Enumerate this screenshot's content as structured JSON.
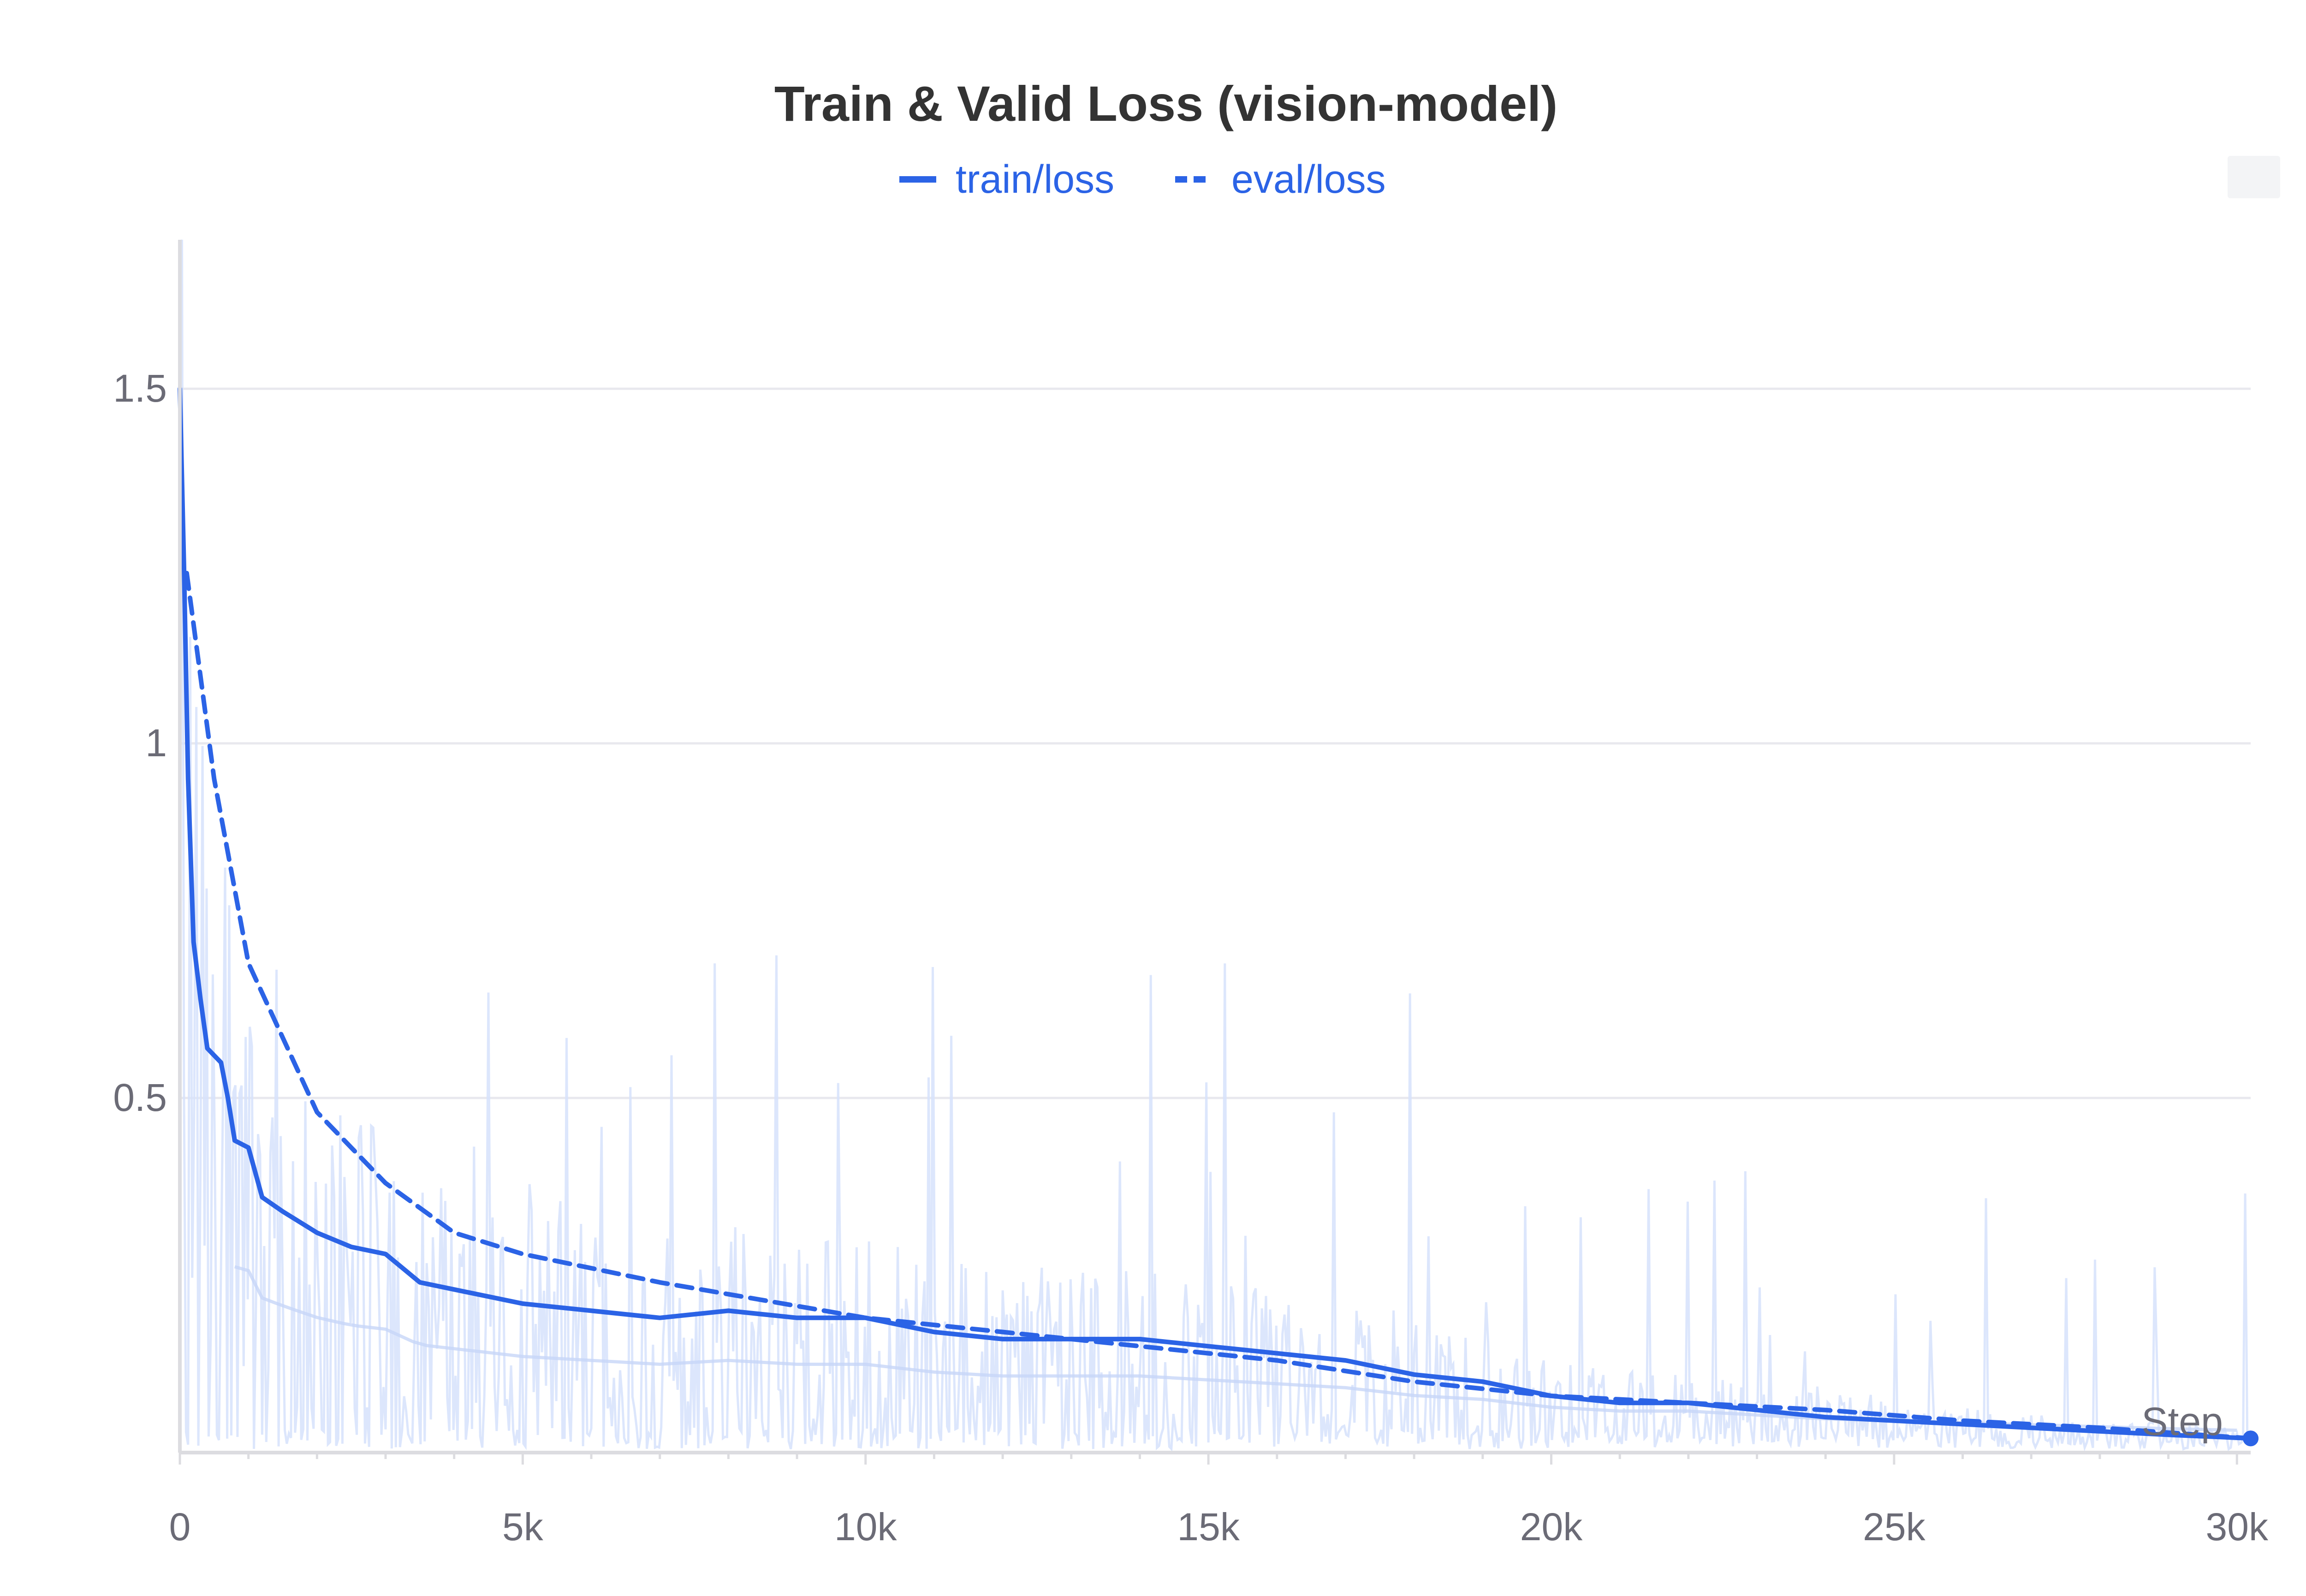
{
  "chart_data": {
    "type": "line",
    "title": "Train & Valid Loss (vision-model)",
    "xlabel": "Step",
    "ylabel": "",
    "xlim": [
      0,
      30200
    ],
    "ylim": [
      0,
      1.71
    ],
    "grid": true,
    "legend_position": "top-center",
    "x_ticks": [
      0,
      5000,
      10000,
      15000,
      20000,
      25000,
      30000
    ],
    "x_tick_labels": [
      "0",
      "5k",
      "10k",
      "15k",
      "20k",
      "25k",
      "30k"
    ],
    "y_ticks": [
      0.5,
      1.0,
      1.5
    ],
    "y_tick_labels": [
      "0.5",
      "1",
      "1.5"
    ],
    "colors": {
      "series": "#2b63e6",
      "raw": "#d6e2fb",
      "raw_fill": "#e8effd",
      "grid": "#e8e8ee",
      "axis": "#dcdce0"
    },
    "series": [
      {
        "name": "train/loss",
        "style": "solid",
        "x": [
          0,
          60,
          120,
          200,
          300,
          400,
          500,
          600,
          700,
          800,
          1000,
          1200,
          1500,
          2000,
          2500,
          3000,
          3500,
          4000,
          5000,
          6000,
          7000,
          8000,
          9000,
          10000,
          11000,
          12000,
          13000,
          14000,
          15000,
          16000,
          17000,
          18000,
          19000,
          20000,
          21000,
          22000,
          23000,
          24000,
          25000,
          26000,
          27000,
          28000,
          29000,
          30200
        ],
        "values": [
          1.5,
          1.25,
          0.95,
          0.72,
          0.64,
          0.57,
          0.56,
          0.55,
          0.5,
          0.44,
          0.43,
          0.36,
          0.34,
          0.31,
          0.29,
          0.28,
          0.24,
          0.23,
          0.21,
          0.2,
          0.19,
          0.2,
          0.19,
          0.19,
          0.17,
          0.16,
          0.16,
          0.16,
          0.15,
          0.14,
          0.13,
          0.11,
          0.1,
          0.08,
          0.07,
          0.07,
          0.06,
          0.05,
          0.045,
          0.04,
          0.035,
          0.03,
          0.025,
          0.02
        ]
      },
      {
        "name": "eval/loss",
        "style": "dashed",
        "x": [
          100,
          500,
          1000,
          2000,
          3000,
          4000,
          5000,
          7000,
          10000,
          12000,
          14000,
          16000,
          18000,
          20000,
          22000,
          24000,
          26000,
          28000,
          30200
        ],
        "values": [
          1.24,
          0.95,
          0.69,
          0.48,
          0.38,
          0.31,
          0.28,
          0.24,
          0.19,
          0.17,
          0.15,
          0.13,
          0.1,
          0.08,
          0.07,
          0.06,
          0.045,
          0.035,
          0.02
        ]
      }
    ]
  }
}
